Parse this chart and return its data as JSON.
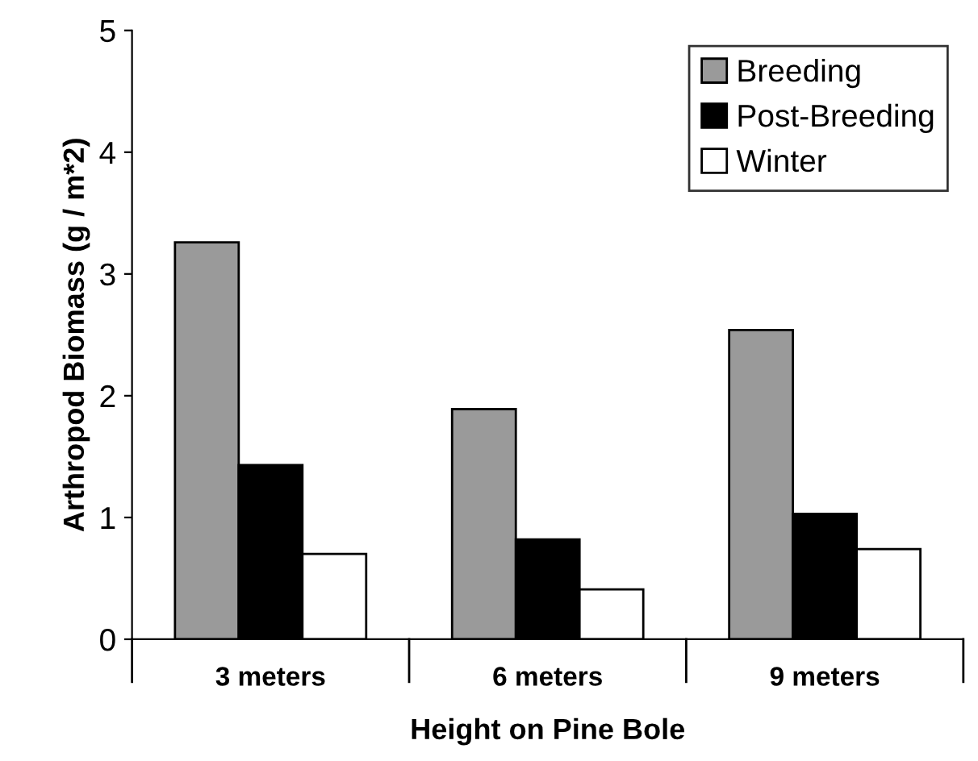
{
  "chart_data": {
    "type": "bar",
    "xlabel": "Height on Pine Bole",
    "ylabel": "Arthropod Biomass (g / m*2)",
    "categories": [
      "3 meters",
      "6 meters",
      "9 meters"
    ],
    "series": [
      {
        "name": "Breeding",
        "color": "#9a9a9a",
        "values": [
          3.26,
          1.89,
          2.54
        ]
      },
      {
        "name": "Post-Breeding",
        "color": "#000000",
        "values": [
          1.43,
          0.82,
          1.03
        ]
      },
      {
        "name": "Winter",
        "color": "#ffffff",
        "values": [
          0.7,
          0.41,
          0.74
        ]
      }
    ],
    "ylim": [
      0,
      5
    ],
    "yticks": [
      0,
      1,
      2,
      3,
      4,
      5
    ],
    "grid": false,
    "legend": "top right"
  }
}
